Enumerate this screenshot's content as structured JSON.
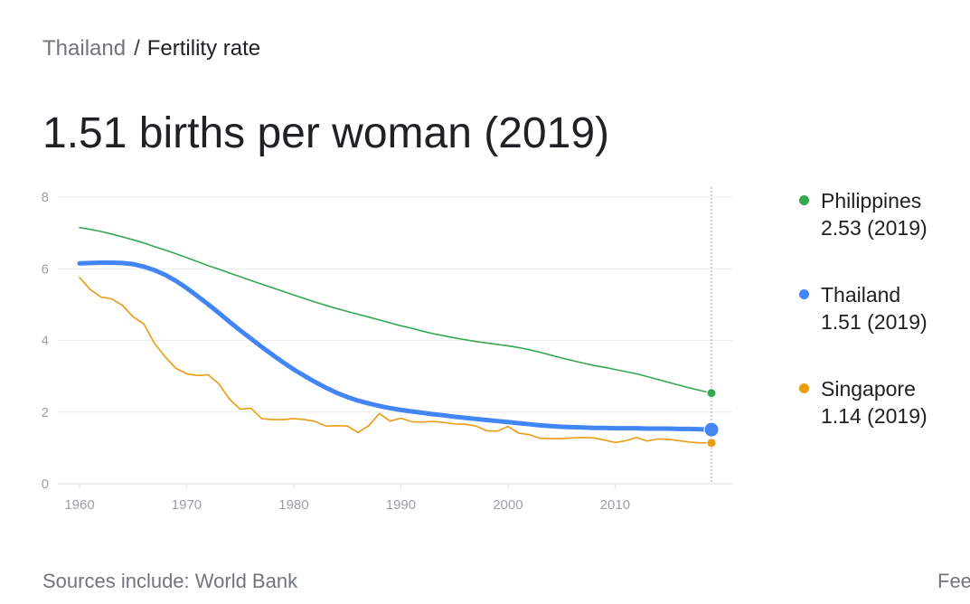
{
  "breadcrumb": {
    "parent": "Thailand",
    "separator": "/",
    "current": "Fertility rate"
  },
  "headline": "1.51 births per woman (2019)",
  "legend": [
    {
      "name": "Philippines",
      "value": "2.53 (2019)",
      "color": "#34a853"
    },
    {
      "name": "Thailand",
      "value": "1.51 (2019)",
      "color": "#4285f4"
    },
    {
      "name": "Singapore",
      "value": "1.14 (2019)",
      "color": "#ea9c12"
    }
  ],
  "footer": {
    "sources_prefix": "Sources include: ",
    "sources_link": "World Bank",
    "feedback": "Fee"
  },
  "chart_data": {
    "type": "line",
    "title": "",
    "xlabel": "",
    "ylabel": "",
    "xlim": [
      1960,
      2019
    ],
    "ylim": [
      0,
      8
    ],
    "xticks": [
      1960,
      1970,
      1980,
      1990,
      2000,
      2010
    ],
    "yticks": [
      0,
      2,
      4,
      6,
      8
    ],
    "grid": true,
    "highlight_x": 2019,
    "x": [
      1960,
      1961,
      1962,
      1963,
      1964,
      1965,
      1966,
      1967,
      1968,
      1969,
      1970,
      1971,
      1972,
      1973,
      1974,
      1975,
      1976,
      1977,
      1978,
      1979,
      1980,
      1981,
      1982,
      1983,
      1984,
      1985,
      1986,
      1987,
      1988,
      1989,
      1990,
      1991,
      1992,
      1993,
      1994,
      1995,
      1996,
      1997,
      1998,
      1999,
      2000,
      2001,
      2002,
      2003,
      2004,
      2005,
      2006,
      2007,
      2008,
      2009,
      2010,
      2011,
      2012,
      2013,
      2014,
      2015,
      2016,
      2017,
      2018,
      2019
    ],
    "series": [
      {
        "name": "Philippines",
        "color": "#34a853",
        "width": 1.6,
        "values": [
          7.15,
          7.1,
          7.04,
          6.97,
          6.89,
          6.81,
          6.72,
          6.62,
          6.52,
          6.42,
          6.31,
          6.2,
          6.09,
          5.99,
          5.88,
          5.78,
          5.67,
          5.57,
          5.47,
          5.37,
          5.27,
          5.17,
          5.07,
          4.98,
          4.89,
          4.81,
          4.73,
          4.65,
          4.57,
          4.49,
          4.41,
          4.34,
          4.26,
          4.19,
          4.13,
          4.07,
          4.02,
          3.97,
          3.93,
          3.89,
          3.85,
          3.8,
          3.74,
          3.67,
          3.59,
          3.51,
          3.44,
          3.37,
          3.3,
          3.25,
          3.19,
          3.13,
          3.07,
          2.99,
          2.91,
          2.83,
          2.75,
          2.67,
          2.6,
          2.53
        ]
      },
      {
        "name": "Thailand",
        "color": "#4285f4",
        "width": 5,
        "values": [
          6.15,
          6.16,
          6.17,
          6.17,
          6.16,
          6.13,
          6.06,
          5.96,
          5.83,
          5.66,
          5.46,
          5.24,
          5.01,
          4.77,
          4.52,
          4.28,
          4.05,
          3.82,
          3.6,
          3.39,
          3.19,
          3.01,
          2.84,
          2.68,
          2.54,
          2.42,
          2.32,
          2.24,
          2.17,
          2.11,
          2.06,
          2.02,
          1.98,
          1.94,
          1.91,
          1.87,
          1.84,
          1.81,
          1.78,
          1.75,
          1.72,
          1.69,
          1.66,
          1.63,
          1.61,
          1.59,
          1.58,
          1.57,
          1.56,
          1.56,
          1.55,
          1.55,
          1.55,
          1.54,
          1.54,
          1.54,
          1.53,
          1.53,
          1.52,
          1.51
        ]
      },
      {
        "name": "Singapore",
        "color": "#ea9c12",
        "width": 1.6,
        "values": [
          5.76,
          5.42,
          5.21,
          5.16,
          4.98,
          4.66,
          4.46,
          3.92,
          3.54,
          3.22,
          3.07,
          3.02,
          3.04,
          2.79,
          2.36,
          2.08,
          2.11,
          1.82,
          1.79,
          1.79,
          1.82,
          1.79,
          1.74,
          1.61,
          1.62,
          1.61,
          1.43,
          1.62,
          1.96,
          1.75,
          1.83,
          1.73,
          1.72,
          1.74,
          1.71,
          1.67,
          1.66,
          1.61,
          1.48,
          1.47,
          1.6,
          1.41,
          1.37,
          1.27,
          1.26,
          1.26,
          1.28,
          1.29,
          1.28,
          1.22,
          1.15,
          1.2,
          1.29,
          1.19,
          1.25,
          1.24,
          1.2,
          1.16,
          1.14,
          1.14
        ]
      }
    ]
  }
}
